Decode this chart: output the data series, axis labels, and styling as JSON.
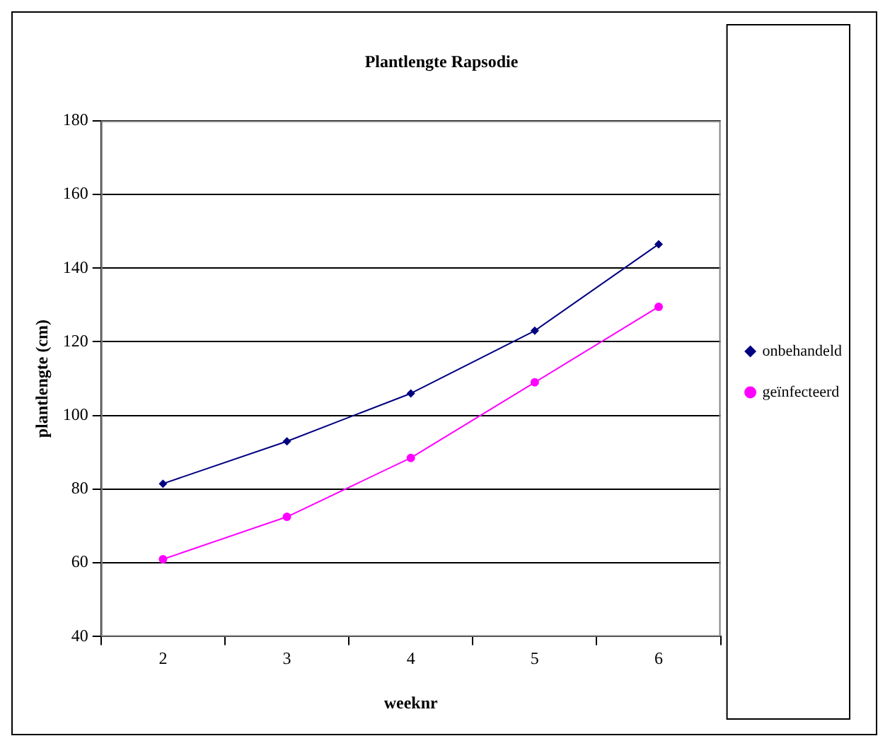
{
  "chart_data": {
    "type": "line",
    "title": "Plantlengte Rapsodie",
    "xlabel": "weeknr",
    "ylabel": "plantlengte (cm)",
    "categories": [
      "2",
      "3",
      "4",
      "5",
      "6"
    ],
    "series": [
      {
        "name": "onbehandeld",
        "color": "#000080",
        "marker": "diamond",
        "values": [
          81.5,
          93,
          106,
          123,
          146.5
        ]
      },
      {
        "name": "geïnfecteerd",
        "color": "#ff00ff",
        "marker": "circle",
        "values": [
          61,
          72.5,
          88.5,
          109,
          129.5
        ]
      }
    ],
    "ylim": [
      40,
      180
    ],
    "yticks": [
      40,
      60,
      80,
      100,
      120,
      140,
      160,
      180
    ],
    "grid": "y",
    "legend": "right",
    "line_style": "solid"
  }
}
